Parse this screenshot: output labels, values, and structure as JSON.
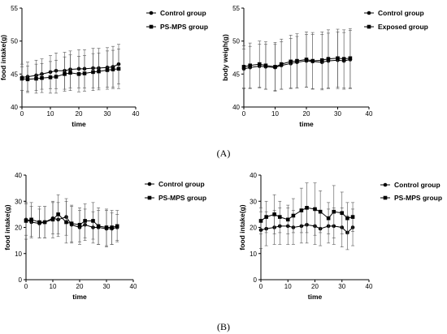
{
  "figure": {
    "row_labels": [
      "(A)",
      "(B)"
    ]
  },
  "chart_data": [
    {
      "type": "line",
      "xlabel": "time",
      "ylabel": "food intake(g)",
      "xlim": [
        0,
        40
      ],
      "ylim": [
        40,
        55
      ],
      "xticks": [
        0,
        10,
        20,
        30,
        40
      ],
      "yticks": [
        40,
        45,
        50,
        55
      ],
      "legend_position": "top-right",
      "series": [
        {
          "name": "Control group",
          "marker": "circle",
          "x": [
            0,
            2,
            5,
            7,
            10,
            12,
            15,
            17,
            20,
            22,
            25,
            27,
            30,
            32,
            34
          ],
          "y": [
            44.5,
            44.6,
            44.8,
            45.0,
            45.3,
            45.5,
            45.5,
            45.7,
            45.8,
            45.8,
            45.9,
            45.9,
            46.0,
            46.1,
            46.5
          ],
          "err": [
            2.0,
            2.2,
            2.3,
            2.3,
            2.5,
            2.7,
            2.8,
            2.8,
            2.9,
            2.9,
            3.0,
            3.0,
            3.0,
            3.1,
            3.0
          ]
        },
        {
          "name": "PS-MPS  group",
          "marker": "square",
          "x": [
            0,
            2,
            5,
            7,
            10,
            12,
            15,
            17,
            20,
            22,
            25,
            27,
            30,
            32,
            34
          ],
          "y": [
            44.3,
            44.2,
            44.3,
            44.4,
            44.5,
            44.6,
            45.0,
            45.2,
            45.0,
            45.1,
            45.3,
            45.4,
            45.6,
            45.7,
            45.8
          ],
          "err": [
            1.8,
            2.0,
            2.2,
            2.2,
            2.4,
            2.5,
            2.6,
            2.7,
            2.7,
            2.7,
            2.8,
            2.8,
            2.9,
            2.9,
            3.0
          ]
        }
      ]
    },
    {
      "type": "line",
      "xlabel": "time",
      "ylabel": "body weigh(g)",
      "xlim": [
        0,
        40
      ],
      "ylim": [
        40,
        55
      ],
      "xticks": [
        0,
        10,
        20,
        30,
        40
      ],
      "yticks": [
        40,
        45,
        50,
        55
      ],
      "legend_position": "top-right",
      "series": [
        {
          "name": "Control group",
          "marker": "circle",
          "x": [
            0,
            2,
            5,
            7,
            10,
            12,
            15,
            17,
            20,
            22,
            25,
            27,
            30,
            32,
            34
          ],
          "y": [
            45.8,
            46.0,
            46.2,
            46.1,
            46.0,
            46.3,
            46.6,
            46.8,
            47.0,
            46.9,
            46.8,
            47.0,
            47.1,
            47.0,
            47.2
          ],
          "err": [
            3.0,
            3.2,
            3.3,
            3.4,
            3.5,
            3.6,
            3.8,
            3.9,
            4.0,
            4.1,
            4.2,
            4.2,
            4.3,
            4.3,
            4.4
          ]
        },
        {
          "name": "Exposed group",
          "marker": "square",
          "x": [
            0,
            2,
            5,
            7,
            10,
            12,
            15,
            17,
            20,
            22,
            25,
            27,
            30,
            32,
            34
          ],
          "y": [
            46.1,
            46.3,
            46.5,
            46.3,
            46.1,
            46.5,
            46.9,
            47.0,
            47.2,
            47.0,
            47.1,
            47.3,
            47.4,
            47.3,
            47.4
          ],
          "err": [
            3.2,
            3.4,
            3.5,
            3.6,
            3.7,
            3.8,
            4.0,
            4.1,
            4.2,
            4.3,
            4.3,
            4.4,
            4.4,
            4.4,
            4.5
          ]
        }
      ]
    },
    {
      "type": "line",
      "xlabel": "time",
      "ylabel": "food intake(g)",
      "xlim": [
        0,
        40
      ],
      "ylim": [
        0,
        40
      ],
      "xticks": [
        0,
        10,
        20,
        30,
        40
      ],
      "yticks": [
        0,
        10,
        20,
        30,
        40
      ],
      "legend_position": "top-right",
      "series": [
        {
          "name": "Control group",
          "marker": "circle",
          "x": [
            0,
            2,
            5,
            7,
            10,
            12,
            15,
            17,
            20,
            22,
            25,
            27,
            30,
            32,
            34
          ],
          "y": [
            23.0,
            22.0,
            21.5,
            22.0,
            23.5,
            23.0,
            24.0,
            21.0,
            20.0,
            21.0,
            20.0,
            20.0,
            19.5,
            19.5,
            20.0
          ],
          "err": [
            6.0,
            6.0,
            5.5,
            6.0,
            6.0,
            6.5,
            7.0,
            7.0,
            6.5,
            6.0,
            6.0,
            6.5,
            7.0,
            6.0,
            5.0
          ]
        },
        {
          "name": "PS-MPS  group",
          "marker": "square",
          "x": [
            0,
            2,
            5,
            7,
            10,
            12,
            15,
            17,
            20,
            22,
            25,
            27,
            30,
            32,
            34
          ],
          "y": [
            22.5,
            23.0,
            22.0,
            22.0,
            23.0,
            25.0,
            22.0,
            21.5,
            21.0,
            22.5,
            22.5,
            20.5,
            20.0,
            20.0,
            20.5
          ],
          "err": [
            7.0,
            6.5,
            6.0,
            6.0,
            7.0,
            7.5,
            8.0,
            7.0,
            6.5,
            6.5,
            7.0,
            7.0,
            7.0,
            6.5,
            6.0
          ]
        }
      ]
    },
    {
      "type": "line",
      "xlabel": "time",
      "ylabel": "food intake(g)",
      "xlim": [
        0,
        40
      ],
      "ylim": [
        0,
        40
      ],
      "xticks": [
        0,
        10,
        20,
        30,
        40
      ],
      "yticks": [
        0,
        10,
        20,
        30,
        40
      ],
      "legend_position": "top-right",
      "series": [
        {
          "name": "Control group",
          "marker": "circle",
          "x": [
            0,
            2,
            5,
            7,
            10,
            12,
            15,
            17,
            20,
            22,
            25,
            27,
            30,
            32,
            34
          ],
          "y": [
            19.0,
            19.5,
            20.0,
            20.5,
            20.5,
            20.0,
            20.5,
            21.0,
            20.5,
            19.5,
            20.5,
            20.5,
            20.0,
            18.0,
            20.0
          ],
          "err": [
            7.0,
            6.5,
            6.5,
            7.0,
            7.0,
            6.5,
            6.5,
            7.0,
            7.0,
            6.5,
            6.5,
            7.0,
            7.5,
            6.5,
            7.0
          ]
        },
        {
          "name": "PS-MPS  group",
          "marker": "square",
          "x": [
            0,
            2,
            5,
            7,
            10,
            12,
            15,
            17,
            20,
            22,
            25,
            27,
            30,
            32,
            34
          ],
          "y": [
            22.5,
            24.0,
            25.0,
            24.0,
            23.0,
            24.5,
            26.5,
            27.5,
            27.0,
            26.0,
            23.5,
            26.0,
            25.5,
            23.5,
            24.0
          ],
          "err": [
            5.0,
            6.0,
            7.5,
            6.0,
            5.5,
            6.5,
            8.5,
            9.5,
            10.0,
            8.0,
            6.0,
            10.0,
            8.0,
            6.0,
            5.5
          ]
        }
      ]
    }
  ]
}
